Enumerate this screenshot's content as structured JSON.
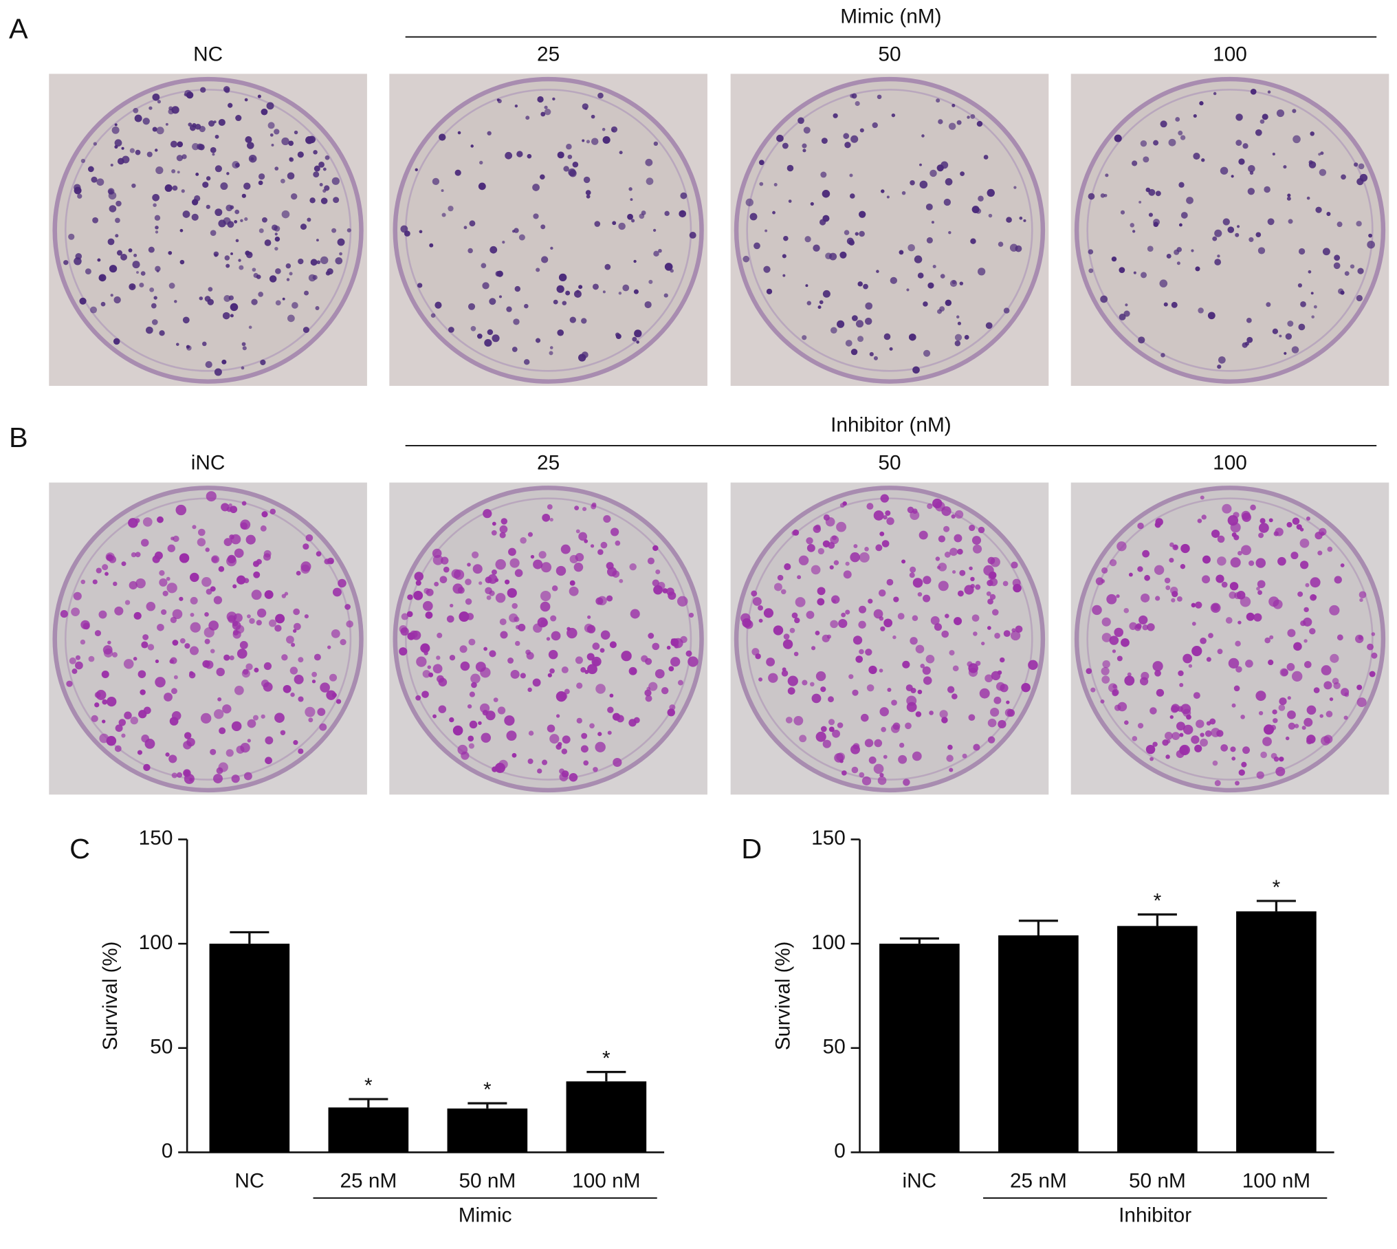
{
  "photo_panels": [
    {
      "label": "A",
      "group": "Mimic (nM)",
      "plates": [
        "NC",
        "25",
        "50",
        "100"
      ]
    },
    {
      "label": "B",
      "group": "Inhibitor (nM)",
      "plates": [
        "iNC",
        "25",
        "50",
        "100"
      ]
    }
  ],
  "chart_data": [
    {
      "type": "bar",
      "panel": "C",
      "ylabel": "Survival (%)",
      "categories": [
        "NC",
        "25 nM",
        "50 nM",
        "100 nM"
      ],
      "values": [
        100,
        21.5,
        21,
        34
      ],
      "errors": [
        5.5,
        4,
        2.5,
        4.5
      ],
      "significance": [
        null,
        "*",
        "*",
        "*"
      ],
      "group_label": "Mimic",
      "color": "#000000",
      "ylim": [
        0,
        150
      ],
      "yticks": [
        0,
        50,
        100,
        150
      ]
    },
    {
      "type": "bar",
      "panel": "D",
      "ylabel": "Survival (%)",
      "categories": [
        "iNC",
        "25 nM",
        "50 nM",
        "100 nM"
      ],
      "values": [
        100,
        104,
        108.5,
        115.5
      ],
      "errors": [
        2.5,
        7,
        5.5,
        5
      ],
      "significance": [
        null,
        null,
        "*",
        "*"
      ],
      "group_label": "Inhibitor",
      "color": "#000000",
      "ylim": [
        0,
        150
      ],
      "yticks": [
        0,
        50,
        100,
        150
      ]
    }
  ]
}
